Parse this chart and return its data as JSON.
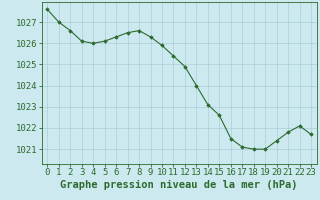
{
  "x": [
    0,
    1,
    2,
    3,
    4,
    5,
    6,
    7,
    8,
    9,
    10,
    11,
    12,
    13,
    14,
    15,
    16,
    17,
    18,
    19,
    20,
    21,
    22,
    23
  ],
  "y": [
    1027.6,
    1027.0,
    1026.6,
    1026.1,
    1026.0,
    1026.1,
    1026.3,
    1026.5,
    1026.6,
    1026.3,
    1025.9,
    1025.4,
    1024.9,
    1024.0,
    1023.1,
    1022.6,
    1021.5,
    1021.1,
    1021.0,
    1021.0,
    1021.4,
    1021.8,
    1022.1,
    1021.7
  ],
  "line_color": "#2d6a2d",
  "marker": "D",
  "marker_size": 1.8,
  "background_color": "#cce9f0",
  "grid_color": "#aacfd8",
  "xlabel": "Graphe pression niveau de la mer (hPa)",
  "xlabel_fontsize": 7.5,
  "ylabel_ticks": [
    1021,
    1022,
    1023,
    1024,
    1025,
    1026,
    1027
  ],
  "ylim": [
    1020.3,
    1027.95
  ],
  "xlim": [
    -0.5,
    23.5
  ],
  "tick_fontsize": 6.5,
  "xtick_labels": [
    "0",
    "1",
    "2",
    "3",
    "4",
    "5",
    "6",
    "7",
    "8",
    "9",
    "10",
    "11",
    "12",
    "13",
    "14",
    "15",
    "16",
    "17",
    "18",
    "19",
    "20",
    "21",
    "22",
    "23"
  ]
}
